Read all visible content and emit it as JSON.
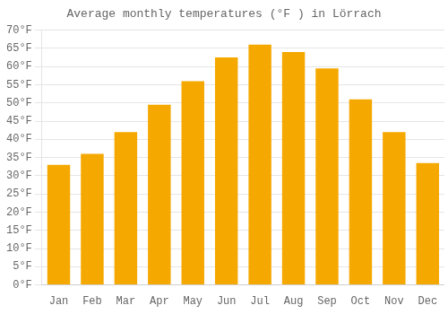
{
  "chart_data": {
    "type": "bar",
    "title": "Average monthly temperatures (°F ) in Lörrach",
    "categories": [
      "Jan",
      "Feb",
      "Mar",
      "Apr",
      "May",
      "Jun",
      "Jul",
      "Aug",
      "Sep",
      "Oct",
      "Nov",
      "Dec"
    ],
    "values": [
      33.0,
      36.0,
      42.0,
      49.5,
      56.0,
      62.5,
      66.0,
      64.0,
      59.5,
      51.0,
      42.0,
      33.5
    ],
    "color": "#F5A800",
    "ylim": [
      0,
      70
    ],
    "yticks": [
      {
        "value": 0,
        "label": "0°F"
      },
      {
        "value": 5,
        "label": "5°F"
      },
      {
        "value": 10,
        "label": "10°F"
      },
      {
        "value": 15,
        "label": "15°F"
      },
      {
        "value": 20,
        "label": "20°F"
      },
      {
        "value": 25,
        "label": "25°F"
      },
      {
        "value": 30,
        "label": "30°F"
      },
      {
        "value": 35,
        "label": "35°F"
      },
      {
        "value": 40,
        "label": "40°F"
      },
      {
        "value": 45,
        "label": "45°F"
      },
      {
        "value": 50,
        "label": "50°F"
      },
      {
        "value": 55,
        "label": "55°F"
      },
      {
        "value": 60,
        "label": "60°F"
      },
      {
        "value": 65,
        "label": "65°F"
      },
      {
        "value": 70,
        "label": "70°F"
      }
    ],
    "grid": true
  }
}
